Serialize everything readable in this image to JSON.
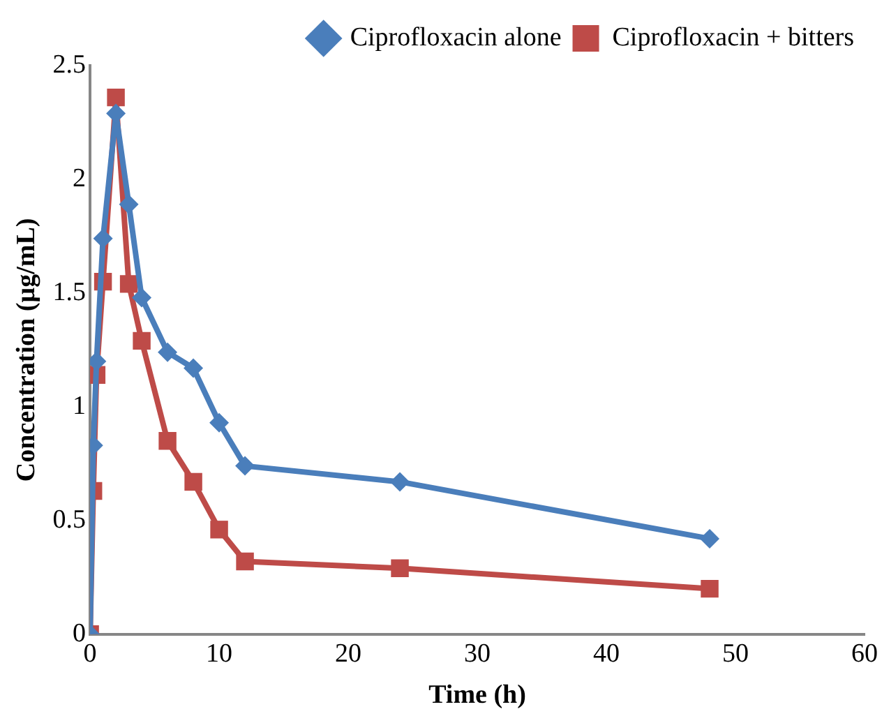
{
  "chart_data": {
    "type": "line",
    "xlabel": "Time (h)",
    "ylabel": "Concentration (µg/mL)",
    "xlim": [
      0,
      60
    ],
    "xticks": [
      0,
      10,
      20,
      30,
      40,
      50,
      60
    ],
    "ylim": [
      0,
      2.5
    ],
    "yticks": [
      0,
      0.5,
      1,
      1.5,
      2,
      2.5
    ],
    "grid": false,
    "legend": "top right",
    "line_style": "solid",
    "x": [
      0,
      0.25,
      0.5,
      1,
      2,
      3,
      4,
      6,
      8,
      10,
      12,
      24,
      48
    ],
    "series": [
      {
        "name": "Ciprofloxacin alone",
        "color": "#4a7ebb",
        "marker": "diamond",
        "values": [
          0,
          0.83,
          1.2,
          1.74,
          2.29,
          1.89,
          1.48,
          1.24,
          1.17,
          0.93,
          0.74,
          0.67,
          0.42
        ]
      },
      {
        "name": "Ciprofloxacin + bitters",
        "color": "#be4b48",
        "marker": "square",
        "values": [
          0,
          0.63,
          1.14,
          1.55,
          2.36,
          1.54,
          1.29,
          0.85,
          0.67,
          0.46,
          0.32,
          0.29,
          0.2
        ]
      }
    ]
  }
}
